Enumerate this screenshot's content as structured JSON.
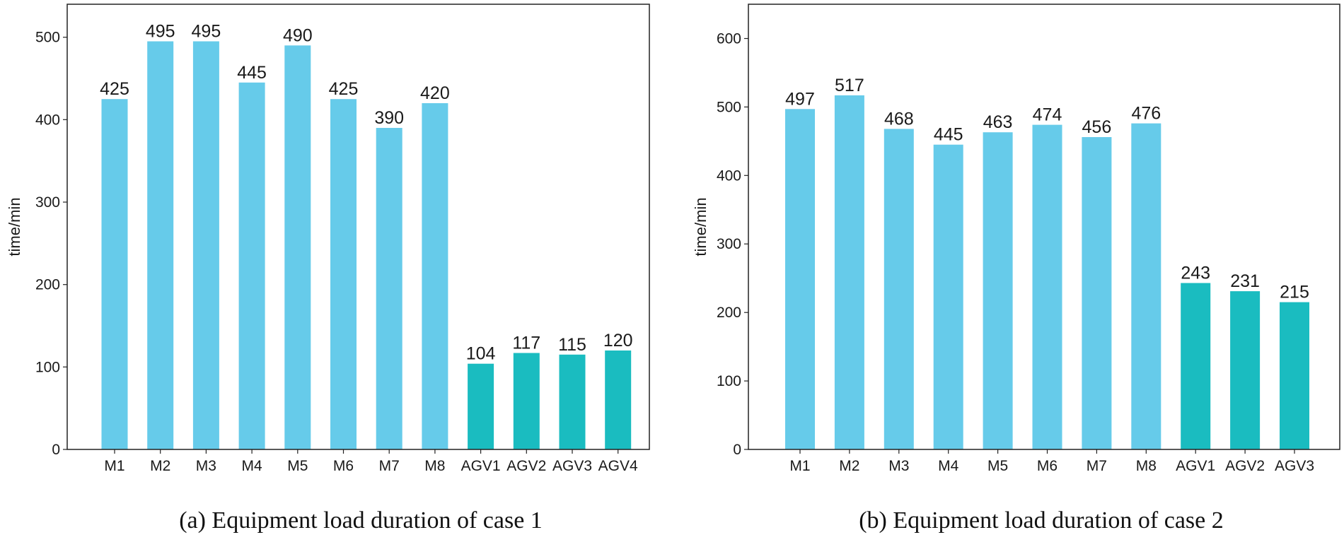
{
  "chart_data": [
    {
      "type": "bar",
      "caption": "(a) Equipment load duration of case 1",
      "ylabel": "time/min",
      "xlabel": "",
      "ylim": [
        0,
        540
      ],
      "yticks": [
        0,
        100,
        200,
        300,
        400,
        500
      ],
      "categories": [
        "M1",
        "M2",
        "M3",
        "M4",
        "M5",
        "M6",
        "M7",
        "M8",
        "AGV1",
        "AGV2",
        "AGV3",
        "AGV4"
      ],
      "values": [
        425,
        495,
        495,
        445,
        490,
        425,
        390,
        420,
        104,
        117,
        115,
        120
      ],
      "colors": [
        "#66cbea",
        "#66cbea",
        "#66cbea",
        "#66cbea",
        "#66cbea",
        "#66cbea",
        "#66cbea",
        "#66cbea",
        "#1abcc0",
        "#1abcc0",
        "#1abcc0",
        "#1abcc0"
      ],
      "grid": false
    },
    {
      "type": "bar",
      "caption": "(b) Equipment load duration of case 2",
      "ylabel": "time/min",
      "xlabel": "",
      "ylim": [
        0,
        650
      ],
      "yticks": [
        0,
        100,
        200,
        300,
        400,
        500,
        600
      ],
      "categories": [
        "M1",
        "M2",
        "M3",
        "M4",
        "M5",
        "M6",
        "M7",
        "M8",
        "AGV1",
        "AGV2",
        "AGV3"
      ],
      "values": [
        497,
        517,
        468,
        445,
        463,
        474,
        456,
        476,
        243,
        231,
        215
      ],
      "colors": [
        "#66cbea",
        "#66cbea",
        "#66cbea",
        "#66cbea",
        "#66cbea",
        "#66cbea",
        "#66cbea",
        "#66cbea",
        "#1abcc0",
        "#1abcc0",
        "#1abcc0"
      ],
      "grid": false
    }
  ]
}
